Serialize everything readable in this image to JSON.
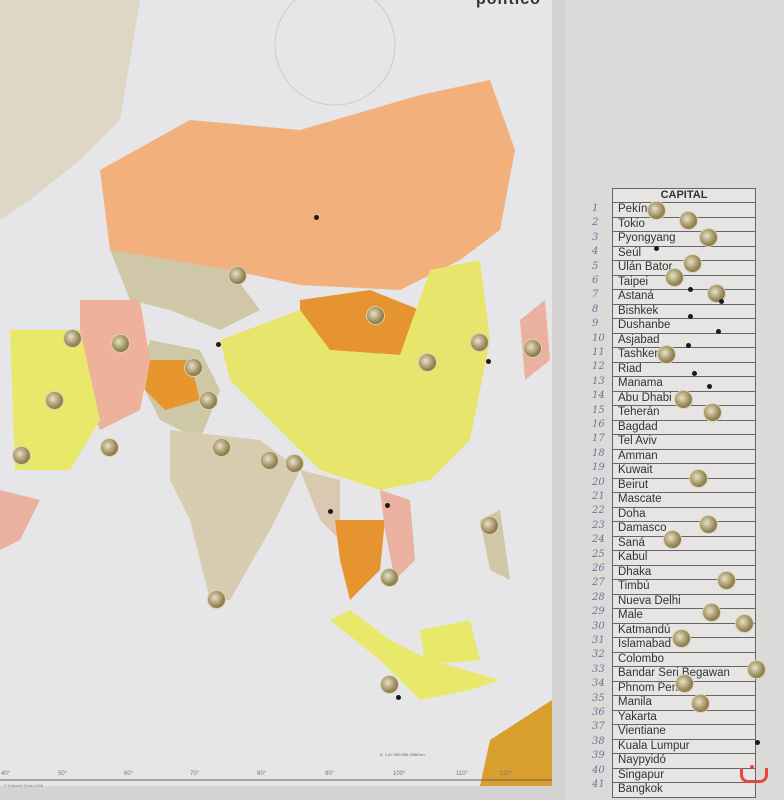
{
  "map": {
    "title": "político",
    "scale_label": "E. 1:47.000.000",
    "scale_end": "2000 km",
    "publisher": "© Editorial Teide 1998",
    "longitudes": [
      "40°",
      "50°",
      "60°",
      "70°",
      "80°",
      "90°",
      "100°",
      "110°",
      "120°"
    ]
  },
  "list": {
    "header": "CAPITAL",
    "capitals": [
      "Pekín",
      "Tokio",
      "Pyongyang",
      "Seúl",
      "Ulán Bator",
      "Taipei",
      "Astaná",
      "Bishkek",
      "Dushanbe",
      "Asjabad",
      "Tashkent",
      "Riad",
      "Manama",
      "Abu Dhabi",
      "Teherán",
      "Bagdad",
      "Tel Aviv",
      "Amman",
      "Kuwait",
      "Beirut",
      "Mascate",
      "Doha",
      "Damasco",
      "Saná",
      "Kabul",
      "Dhaka",
      "Timbú",
      "Nueva Delhi",
      "Male",
      "Katmandú",
      "Islamabad",
      "Colombo",
      "Bandar Seri Begawan",
      "Phnom Penh",
      "Manila",
      "Yakarta",
      "Vientiane",
      "Kuala Lumpur",
      "Naypyidó",
      "Singapur",
      "Bangkok"
    ]
  },
  "colors": {
    "orange": "#f2b07a",
    "yellow": "#e8e86a",
    "dark_orange": "#e7962d",
    "pink": "#eab0a0",
    "khaki": "#cfc9a6",
    "sea": "#e4e4e6"
  }
}
